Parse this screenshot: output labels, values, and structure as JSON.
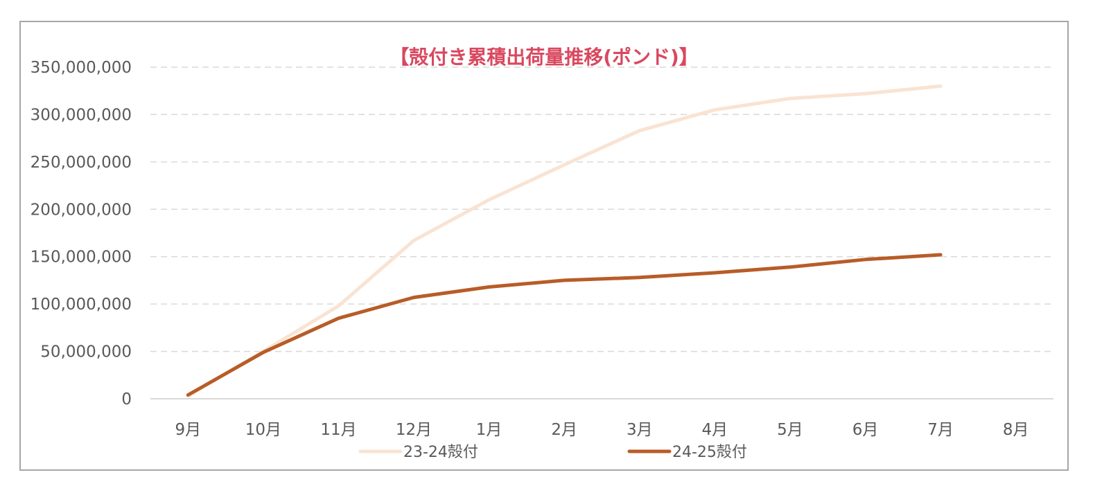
{
  "chart_data": {
    "type": "line",
    "title": "【殻付き累積出荷量推移(ポンド)】",
    "categories": [
      "9月",
      "10月",
      "11月",
      "12月",
      "1月",
      "2月",
      "3月",
      "4月",
      "5月",
      "6月",
      "7月",
      "8月"
    ],
    "ylim": [
      0,
      350000000
    ],
    "yticks": [
      0,
      50000000,
      100000000,
      150000000,
      200000000,
      250000000,
      300000000,
      350000000
    ],
    "ytick_labels": [
      "0",
      "50,000,000",
      "100,000,000",
      "150,000,000",
      "200,000,000",
      "250,000,000",
      "300,000,000",
      "350,000,000"
    ],
    "grid": true,
    "legend_position": "bottom",
    "series": [
      {
        "name": "23-24殻付",
        "color": "#f9e3d2",
        "values": [
          3000000,
          50000000,
          98000000,
          167000000,
          210000000,
          247000000,
          283000000,
          305000000,
          317000000,
          322000000,
          330000000,
          null
        ]
      },
      {
        "name": "24-25殻付",
        "color": "#b85c27",
        "values": [
          4000000,
          49000000,
          85000000,
          107000000,
          118000000,
          125000000,
          128000000,
          133000000,
          139000000,
          147000000,
          152000000,
          null
        ]
      }
    ],
    "title_color": "#d9485f",
    "gridline_color": "#d9d9d9",
    "axis_color": "#d9d9d9"
  }
}
